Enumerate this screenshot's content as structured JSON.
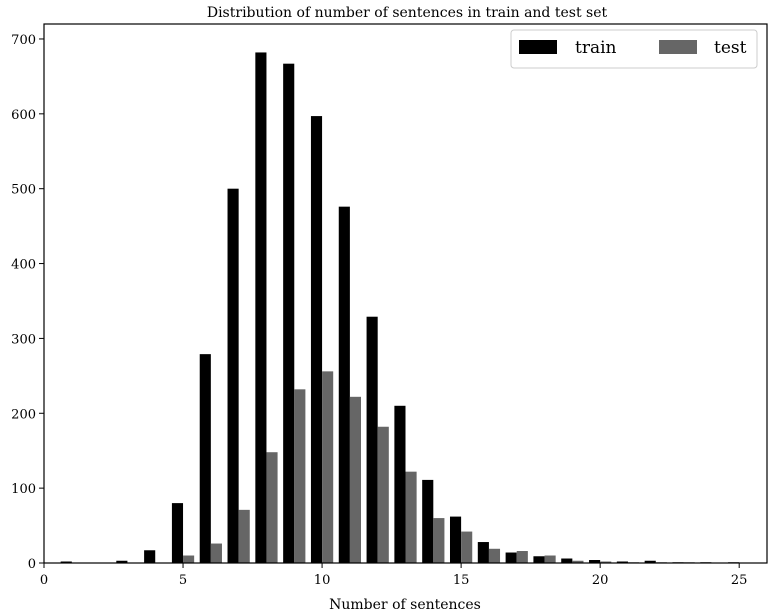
{
  "chart_data": {
    "type": "bar",
    "title": "Distribution of number of sentences in train and test set",
    "xlabel": "Number of sentences",
    "ylabel": "",
    "xlim": [
      0,
      26
    ],
    "ylim": [
      0,
      720
    ],
    "xticks": [
      0,
      5,
      10,
      15,
      20,
      25
    ],
    "yticks": [
      0,
      100,
      200,
      300,
      400,
      500,
      600,
      700
    ],
    "legend_position": "top-right",
    "grid": false,
    "x": [
      1,
      2,
      3,
      4,
      5,
      6,
      7,
      8,
      9,
      10,
      11,
      12,
      13,
      14,
      15,
      16,
      17,
      18,
      19,
      20,
      21,
      22,
      23,
      24,
      25
    ],
    "series": [
      {
        "name": "train",
        "color": "#000000",
        "values": [
          2,
          0,
          3,
          17,
          80,
          279,
          500,
          682,
          667,
          597,
          476,
          329,
          210,
          111,
          62,
          28,
          14,
          9,
          6,
          4,
          2,
          3,
          1,
          1,
          1
        ]
      },
      {
        "name": "test",
        "color": "#666666",
        "values": [
          0,
          0,
          0,
          0,
          10,
          26,
          71,
          148,
          232,
          256,
          222,
          182,
          122,
          60,
          42,
          19,
          16,
          10,
          3,
          2,
          1,
          1,
          1,
          0,
          0
        ]
      }
    ]
  }
}
